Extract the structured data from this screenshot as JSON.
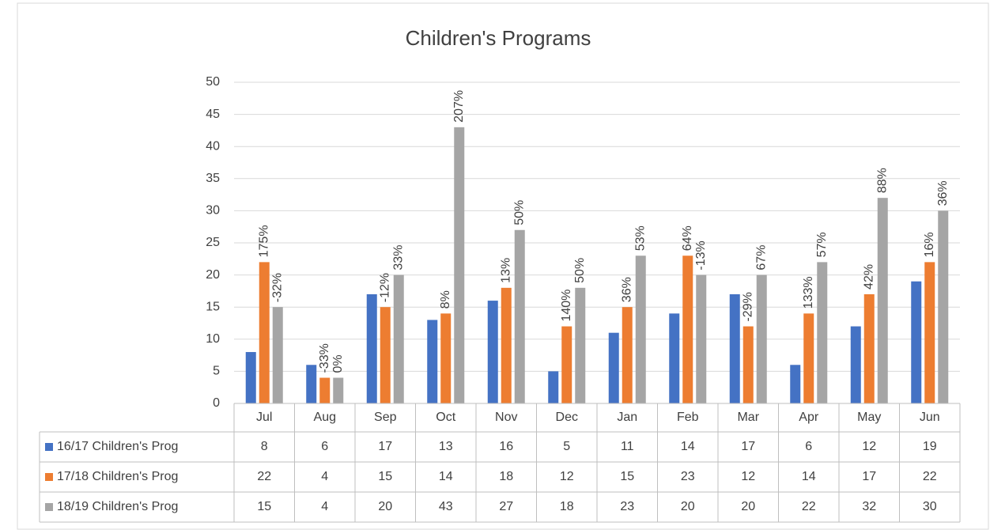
{
  "chart_data": {
    "type": "bar",
    "title": "Children's Programs",
    "categories": [
      "Jul",
      "Aug",
      "Sep",
      "Oct",
      "Nov",
      "Dec",
      "Jan",
      "Feb",
      "Mar",
      "Apr",
      "May",
      "Jun"
    ],
    "series": [
      {
        "name": "16/17 Children's Prog",
        "color": "#4472c4",
        "values": [
          8,
          6,
          17,
          13,
          16,
          5,
          11,
          14,
          17,
          6,
          12,
          19
        ]
      },
      {
        "name": "17/18 Children's Prog",
        "color": "#ed7d31",
        "values": [
          22,
          4,
          15,
          14,
          18,
          12,
          15,
          23,
          12,
          14,
          17,
          22
        ],
        "change_labels": [
          "175%",
          "-33%",
          "-12%",
          "8%",
          "13%",
          "140%",
          "36%",
          "64%",
          "-29%",
          "133%",
          "42%",
          "16%"
        ]
      },
      {
        "name": "18/19 Children's Prog",
        "color": "#a5a5a5",
        "values": [
          15,
          4,
          20,
          43,
          27,
          18,
          23,
          20,
          20,
          22,
          32,
          30
        ],
        "change_labels": [
          "-32%",
          "0%",
          "33%",
          "207%",
          "50%",
          "50%",
          "53%",
          "-13%",
          "67%",
          "57%",
          "88%",
          "36%"
        ]
      }
    ],
    "ylim": [
      0,
      50
    ],
    "yticks": [
      0,
      5,
      10,
      15,
      20,
      25,
      30,
      35,
      40,
      45,
      50
    ],
    "grid": true,
    "data_table": true
  }
}
